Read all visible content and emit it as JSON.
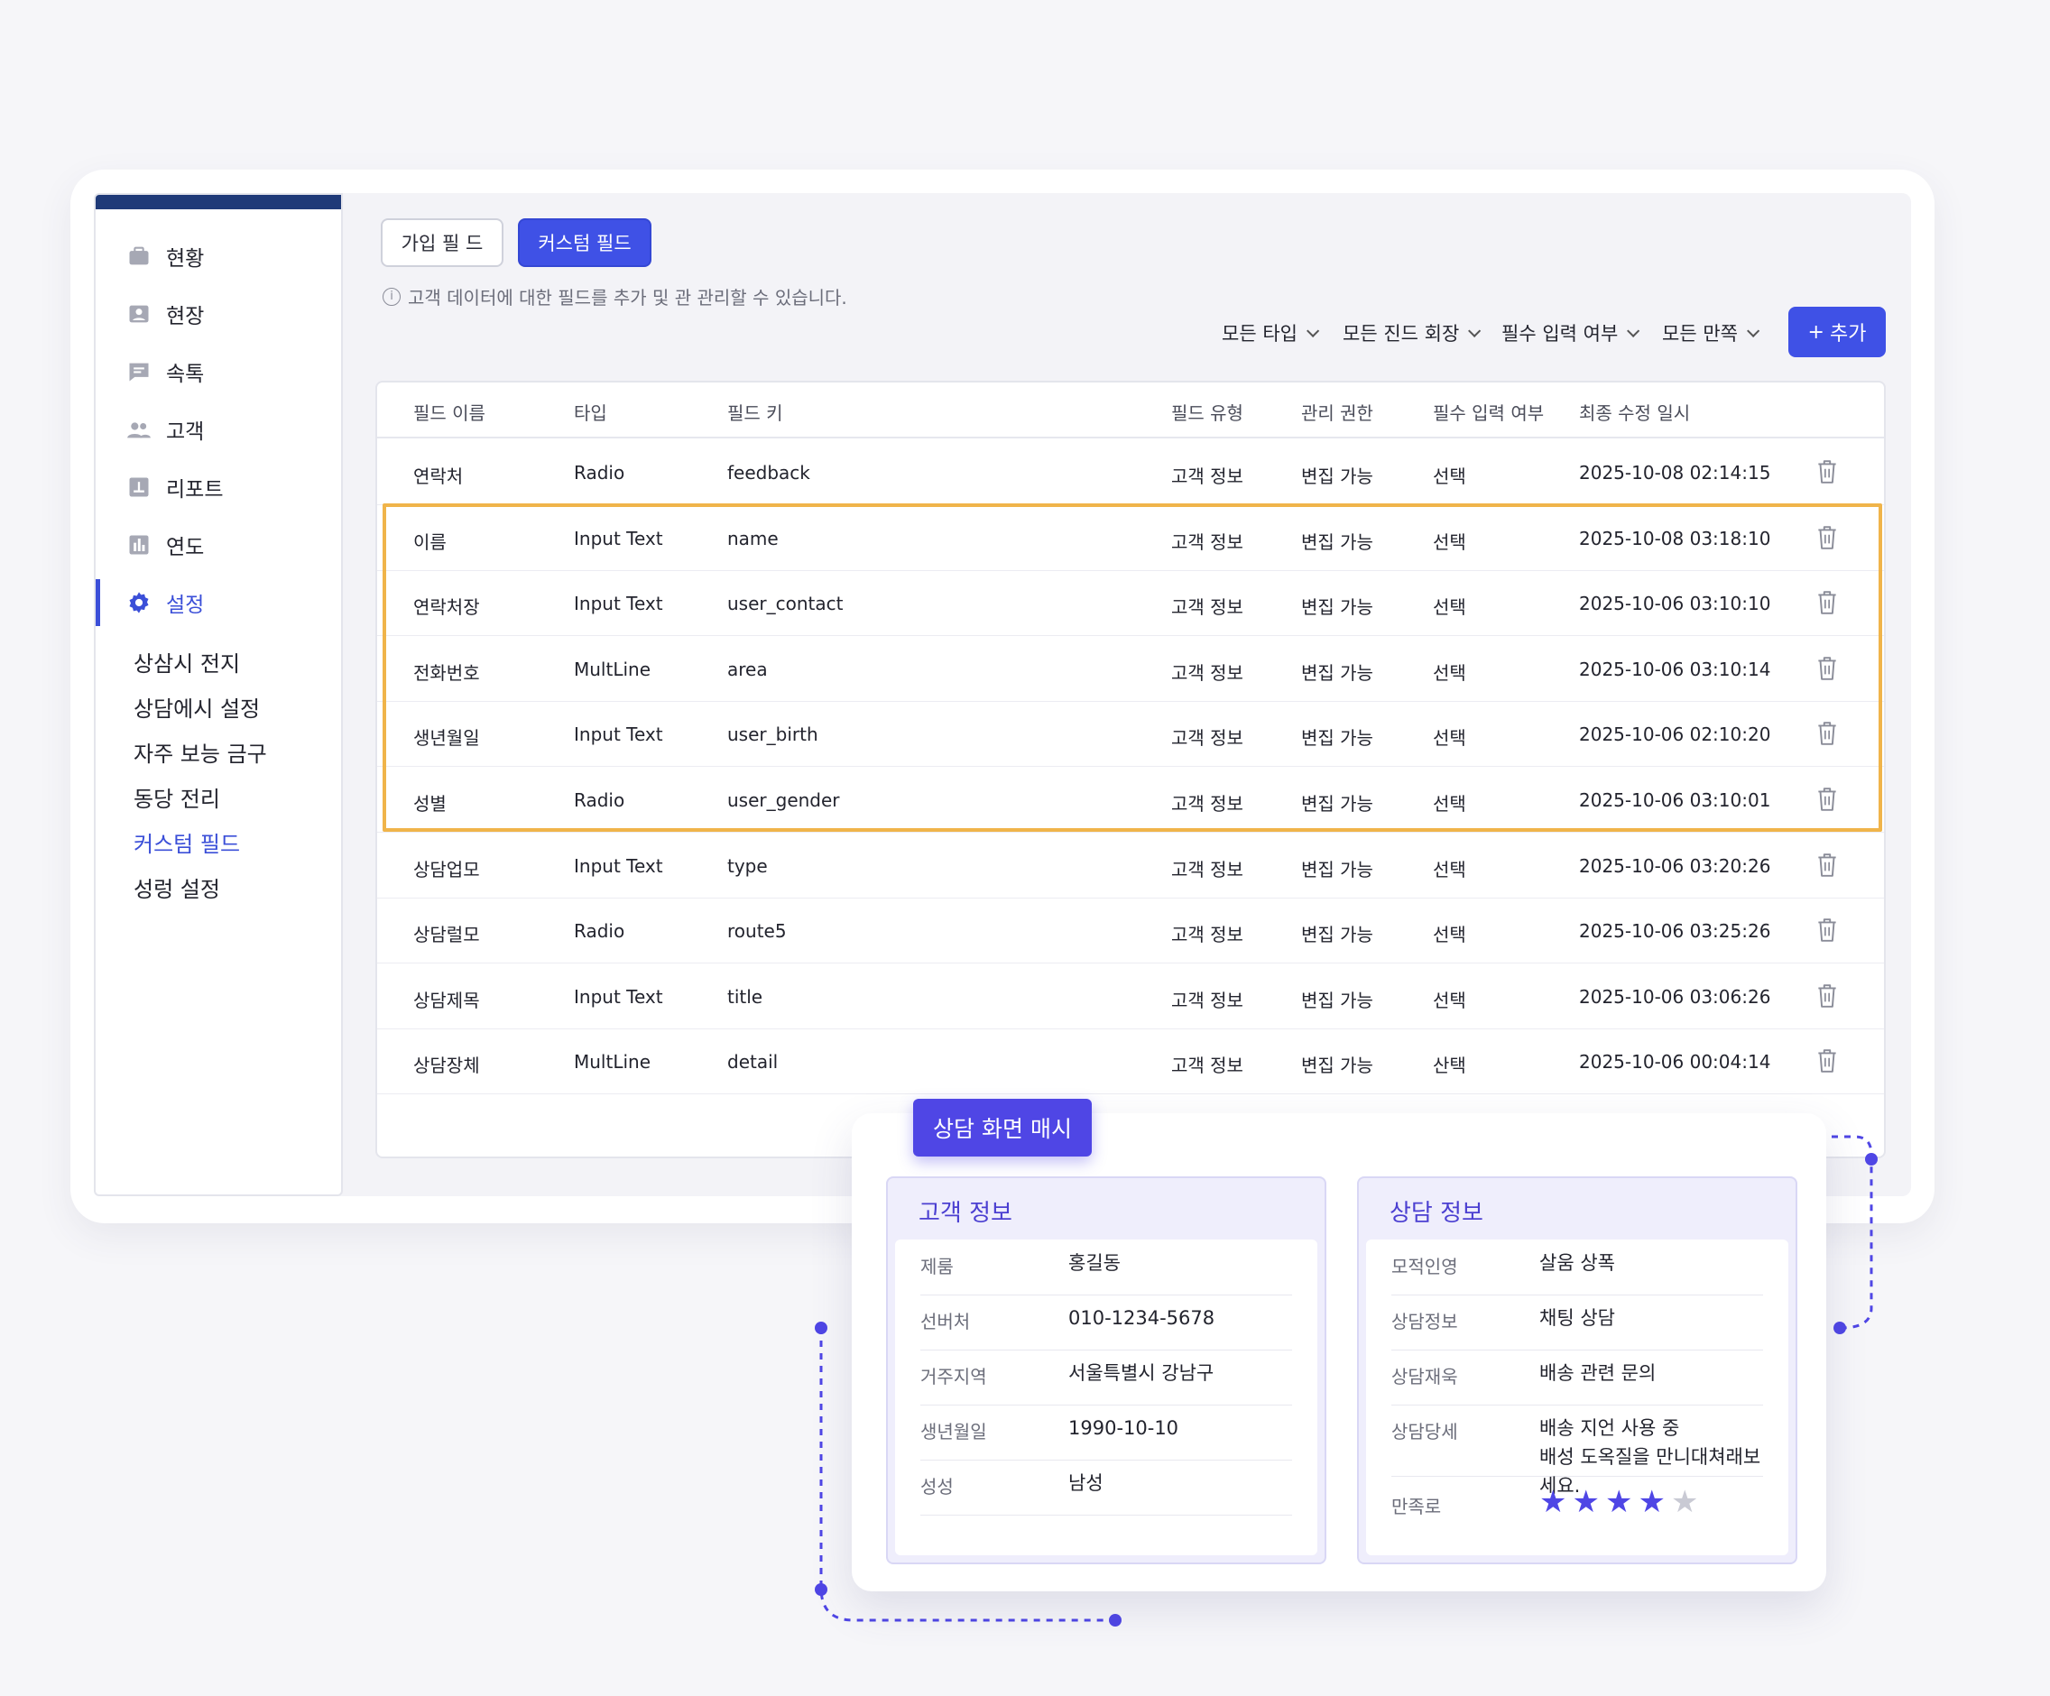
{
  "sidebar": {
    "items": [
      {
        "label": "현황",
        "icon": "briefcase-icon"
      },
      {
        "label": "현장",
        "icon": "image-icon"
      },
      {
        "label": "속톡",
        "icon": "chat-icon"
      },
      {
        "label": "고객",
        "icon": "users-icon"
      },
      {
        "label": "리포트",
        "icon": "report-icon"
      },
      {
        "label": "연도",
        "icon": "chart-icon"
      },
      {
        "label": "설정",
        "icon": "gear-icon"
      }
    ],
    "sub_items": [
      "상삼시 전지",
      "상담에시 설정",
      "자주 보능 금구",
      "동당 전리",
      "커스텀 필드",
      "성렁 설정"
    ]
  },
  "tabs": {
    "signup": "가입 필 드",
    "custom": "커스텀 필드"
  },
  "hint": "고객 데이터에 대한 필드를 추가 및 관 관리할 수 있습니다.",
  "filters": [
    "모든 타입",
    "모든 진드 회장",
    "필수 입력 여부",
    "모든 만쪽"
  ],
  "add_button": "추가",
  "table": {
    "headers": [
      "필드 이름",
      "타입",
      "필드 키",
      "필드 유형",
      "관리 권한",
      "필수 입력 여부",
      "최종 수정 일시"
    ],
    "rows": [
      [
        "연락처",
        "Radio",
        "feedback",
        "고객 정보",
        "변집 가능",
        "선택",
        "2025-10-08 02:14:15"
      ],
      [
        "이름",
        "Input Text",
        "name",
        "고객 정보",
        "변집 가능",
        "선택",
        "2025-10-08 03:18:10"
      ],
      [
        "연락처장",
        "Input Text",
        "user_contact",
        "고객 정보",
        "변집 가능",
        "선택",
        "2025-10-06 03:10:10"
      ],
      [
        "전화번호",
        "MultLine",
        "area",
        "고객 정보",
        "변집 가능",
        "선택",
        "2025-10-06 03:10:14"
      ],
      [
        "생년월일",
        "Input Text",
        "user_birth",
        "고객 정보",
        "변집 가능",
        "선택",
        "2025-10-06 02:10:20"
      ],
      [
        "성별",
        "Radio",
        "user_gender",
        "고객 정보",
        "변집 가능",
        "선택",
        "2025-10-06 03:10:01"
      ],
      [
        "상담업모",
        "Input Text",
        "type",
        "고객 정보",
        "변집 가능",
        "선택",
        "2025-10-06 03:20:26"
      ],
      [
        "상담럴모",
        "Radio",
        "route5",
        "고객 정보",
        "변집 가능",
        "선택",
        "2025-10-06 03:25:26"
      ],
      [
        "상담제목",
        "Input Text",
        "title",
        "고객 정보",
        "변집 가능",
        "선택",
        "2025-10-06 03:06:26"
      ],
      [
        "상담장체",
        "MultLine",
        "detail",
        "고객 정보",
        "변집 가능",
        "산택",
        "2025-10-06 00:04:14"
      ]
    ]
  },
  "preview": {
    "badge": "상담 화면 매시",
    "customer": {
      "title": "고객 정보",
      "fields": [
        {
          "k": "제룸",
          "v": "홍길동"
        },
        {
          "k": "선버처",
          "v": "010-1234-5678"
        },
        {
          "k": "거주지역",
          "v": "서울특별시 강남구"
        },
        {
          "k": "생년월일",
          "v": "1990-10-10"
        },
        {
          "k": "성성",
          "v": "남성"
        }
      ]
    },
    "consult": {
      "title": "상담 정보",
      "fields": [
        {
          "k": "모적인영",
          "v": "살움 상폭"
        },
        {
          "k": "상담정보",
          "v": "채팅 상담"
        },
        {
          "k": "상담재욱",
          "v": "배송 관련 문의"
        },
        {
          "k": "상담당세",
          "v": "배송 지언 사용 중",
          "v2": "배성 도옥질을 만니대쳐래보세요."
        }
      ],
      "rating_label": "만족로",
      "rating": 4,
      "rating_max": 5
    }
  },
  "colors": {
    "accent": "#3f51e6",
    "highlight": "#f0b44a",
    "preview_accent": "#4f46e5",
    "sidebar_top": "#1f3a78"
  }
}
